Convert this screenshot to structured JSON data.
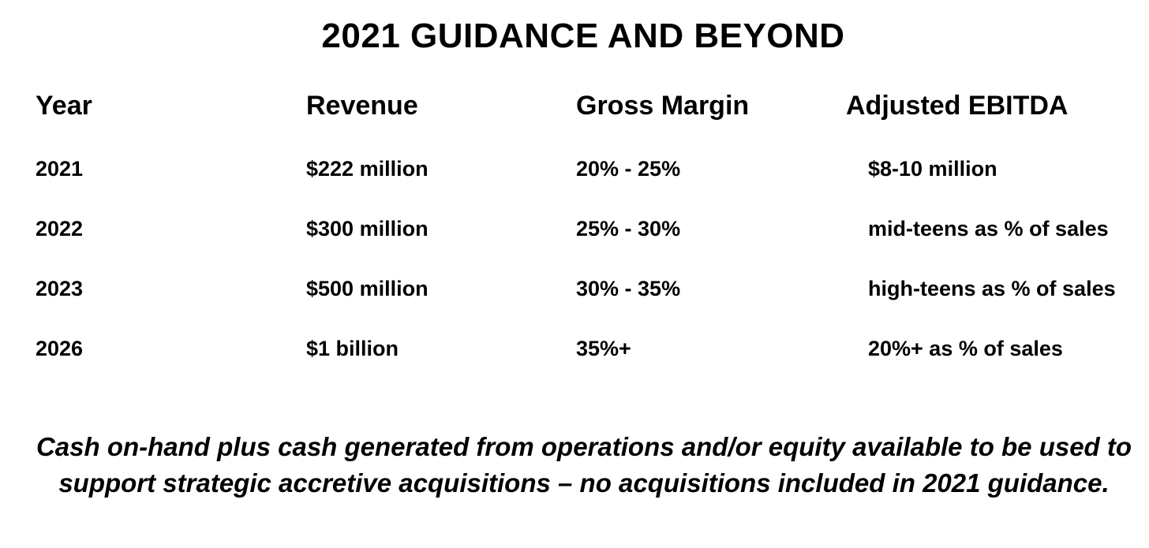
{
  "title": "2021 GUIDANCE AND BEYOND",
  "table": {
    "headers": [
      "Year",
      "Revenue",
      "Gross Margin",
      "Adjusted EBITDA"
    ],
    "rows": [
      [
        "2021",
        "$222 million",
        "20% - 25%",
        "$8-10 million"
      ],
      [
        "2022",
        "$300 million",
        "25% - 30%",
        "mid-teens as % of sales"
      ],
      [
        "2023",
        "$500 million",
        "30% - 35%",
        "high-teens as % of sales"
      ],
      [
        "2026",
        "$1 billion",
        "35%+",
        "20%+ as % of sales"
      ]
    ]
  },
  "footnote": "Cash on-hand plus cash generated from operations and/or equity available to be used to support strategic accretive acquisitions – no acquisitions included in 2021 guidance."
}
